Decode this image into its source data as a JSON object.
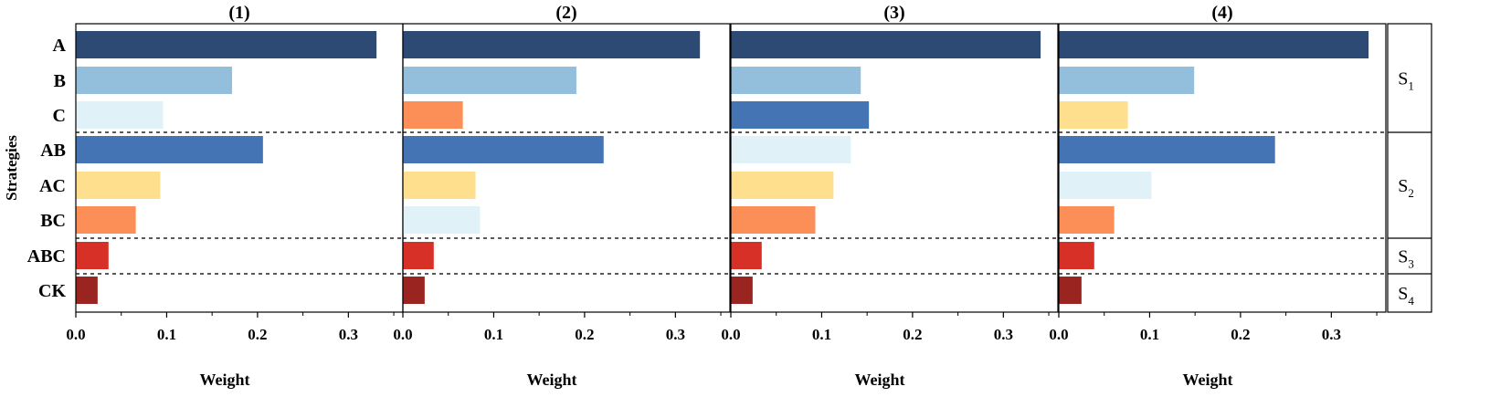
{
  "chart_data": {
    "type": "bar",
    "orientation": "horizontal",
    "ylabel": "Strategies",
    "xlabel": "Weight",
    "categories": [
      "A",
      "B",
      "C",
      "AB",
      "AC",
      "BC",
      "ABC",
      "CK"
    ],
    "xlim": [
      0,
      0.36
    ],
    "xticks": [
      0.0,
      0.1,
      0.2,
      0.3
    ],
    "xtick_labels": [
      "0.0",
      "0.1",
      "0.2",
      "0.3"
    ],
    "groups": [
      {
        "prefix": "S",
        "sub": "1",
        "categories": [
          "A",
          "B",
          "C"
        ]
      },
      {
        "prefix": "S",
        "sub": "2",
        "categories": [
          "AB",
          "AC",
          "BC"
        ]
      },
      {
        "prefix": "S",
        "sub": "3",
        "categories": [
          "ABC"
        ]
      },
      {
        "prefix": "S",
        "sub": "4",
        "categories": [
          "CK"
        ]
      }
    ],
    "panels": [
      {
        "title": "(1)",
        "values": [
          0.331,
          0.172,
          0.096,
          0.206,
          0.093,
          0.066,
          0.036,
          0.024
        ],
        "colors": [
          "#2c4a74",
          "#93bfdc",
          "#e0f1f8",
          "#4474b3",
          "#fddf8d",
          "#fc8e58",
          "#d73027",
          "#9a2520"
        ]
      },
      {
        "title": "(2)",
        "values": [
          0.327,
          0.191,
          0.066,
          0.221,
          0.08,
          0.085,
          0.034,
          0.024
        ],
        "colors": [
          "#2c4a74",
          "#93bfdc",
          "#fc8e58",
          "#4474b3",
          "#fddf8d",
          "#e0f1f8",
          "#d73027",
          "#9a2520"
        ]
      },
      {
        "title": "(3)",
        "values": [
          0.341,
          0.143,
          0.152,
          0.132,
          0.113,
          0.093,
          0.034,
          0.024
        ],
        "colors": [
          "#2c4a74",
          "#93bfdc",
          "#4474b3",
          "#e0f1f8",
          "#fddf8d",
          "#fc8e58",
          "#d73027",
          "#9a2520"
        ]
      },
      {
        "title": "(4)",
        "values": [
          0.341,
          0.149,
          0.076,
          0.238,
          0.102,
          0.061,
          0.039,
          0.025
        ],
        "colors": [
          "#2c4a74",
          "#93bfdc",
          "#fddf8d",
          "#4474b3",
          "#e0f1f8",
          "#fc8e58",
          "#d73027",
          "#9a2520"
        ]
      }
    ]
  }
}
